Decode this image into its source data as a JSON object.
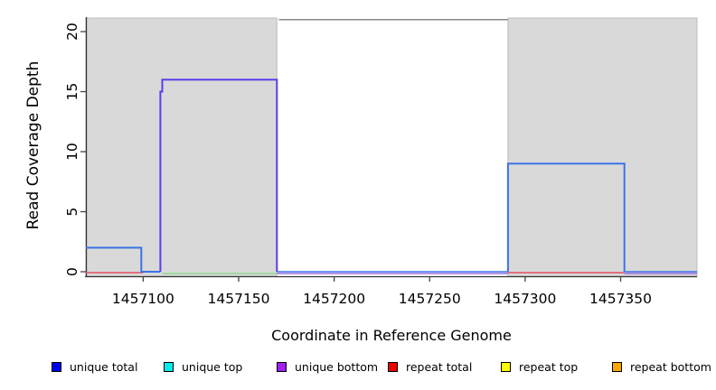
{
  "figure_bg": "#ffffff",
  "chart_data": {
    "type": "line",
    "title": "",
    "xlabel": "Coordinate in Reference Genome",
    "ylabel": "Read Coverage Depth",
    "xlim": [
      1457070,
      1457390
    ],
    "ylim": [
      0,
      21
    ],
    "grid": false,
    "legend_position": "bottom",
    "x_ticks": [
      {
        "value": 1457100,
        "label": "1457100"
      },
      {
        "value": 1457150,
        "label": "1457150"
      },
      {
        "value": 1457200,
        "label": "1457200"
      },
      {
        "value": 1457250,
        "label": "1457250"
      },
      {
        "value": 1457300,
        "label": "1457300"
      },
      {
        "value": 1457350,
        "label": "1457350"
      }
    ],
    "y_ticks": [
      {
        "value": 0,
        "label": "0"
      },
      {
        "value": 5,
        "label": "5"
      },
      {
        "value": 10,
        "label": "10"
      },
      {
        "value": 15,
        "label": "15"
      },
      {
        "value": 20,
        "label": "20"
      }
    ],
    "repeat_regions": [
      {
        "x_start": 1457070,
        "x_end": 1457170
      },
      {
        "x_start": 1457291,
        "x_end": 1457390
      }
    ],
    "max_depth_line": {
      "y": 21,
      "x_start": 1457171,
      "x_end": 1457291,
      "color": "#8A8A8A"
    },
    "colors": {
      "repeat_region_fill": "#D9D9D9",
      "repeat_region_border": "#BDBDBD",
      "axis": "#333333",
      "tick": "#444444",
      "tick_label": "#000000"
    },
    "series": [
      {
        "name": "unique total",
        "color": "#0000EE",
        "steps": [
          [
            1457070,
            2
          ],
          [
            1457099,
            0
          ],
          [
            1457109,
            15
          ],
          [
            1457110,
            16
          ],
          [
            1457170,
            0
          ],
          [
            1457291,
            9
          ],
          [
            1457352,
            0
          ],
          [
            1457390,
            0
          ]
        ]
      },
      {
        "name": "unique top",
        "color": "#00EEEE",
        "steps": [
          [
            1457110,
            0
          ],
          [
            1457170,
            0
          ]
        ]
      },
      {
        "name": "unique bottom",
        "color": "#A020F0",
        "steps": [
          [
            1457070,
            0
          ],
          [
            1457109,
            15
          ],
          [
            1457110,
            16
          ],
          [
            1457170,
            0
          ],
          [
            1457390,
            0
          ]
        ]
      },
      {
        "name": "repeat total",
        "color": "#EE0000",
        "steps": [
          [
            1457070,
            0
          ],
          [
            1457100,
            0
          ],
          [
            1457291,
            0
          ],
          [
            1457352,
            0
          ]
        ]
      },
      {
        "name": "repeat top",
        "color": "#FFFF00",
        "steps": [
          [
            1457070,
            0
          ],
          [
            1457390,
            0
          ]
        ]
      },
      {
        "name": "repeat bottom",
        "color": "#FFA500",
        "steps": [
          [
            1457070,
            0
          ],
          [
            1457390,
            0
          ]
        ]
      }
    ],
    "drawn_segments": [
      {
        "name": "repeat-total-baseline-left",
        "color": "#E25060",
        "width": 1.6,
        "dy": 1,
        "pts": [
          [
            1457070,
            0
          ],
          [
            1457100,
            0
          ]
        ]
      },
      {
        "name": "unique-total-left-step",
        "color": "#3B74E8",
        "width": 2,
        "dy": 0,
        "pts": [
          [
            1457070,
            2
          ],
          [
            1457099,
            2
          ],
          [
            1457099,
            0
          ],
          [
            1457109,
            0
          ]
        ]
      },
      {
        "name": "unique-hump-left",
        "color": "#5C3CE8",
        "width": 2,
        "dy": 0,
        "pts": [
          [
            1457109,
            0
          ],
          [
            1457109,
            15
          ],
          [
            1457110,
            15
          ],
          [
            1457110,
            16
          ],
          [
            1457170,
            16
          ],
          [
            1457170,
            0
          ]
        ]
      },
      {
        "name": "unique-top-baseline",
        "color": "#8CD98C",
        "width": 1.5,
        "dy": 2,
        "pts": [
          [
            1457110,
            0
          ],
          [
            1457170,
            0
          ]
        ]
      },
      {
        "name": "unique-total-baseline-mid",
        "color": "#3B74E8",
        "width": 1.6,
        "dy": 0,
        "pts": [
          [
            1457170,
            0
          ],
          [
            1457291,
            0
          ]
        ]
      },
      {
        "name": "unique-bottom-baseline-mid",
        "color": "#9B70E0",
        "width": 1.6,
        "dy": 2,
        "pts": [
          [
            1457170,
            0
          ],
          [
            1457291,
            0
          ]
        ]
      },
      {
        "name": "max-depth-line",
        "color": "#8A8A8A",
        "width": 1.5,
        "dy": 0,
        "pts": [
          [
            1457171,
            21
          ],
          [
            1457291,
            21
          ]
        ]
      },
      {
        "name": "unique-total-hump-right",
        "color": "#3B74E8",
        "width": 2,
        "dy": 0,
        "pts": [
          [
            1457291,
            0
          ],
          [
            1457291,
            9
          ],
          [
            1457352,
            9
          ],
          [
            1457352,
            0
          ]
        ]
      },
      {
        "name": "repeat-total-baseline-right",
        "color": "#E25060",
        "width": 1.6,
        "dy": 1,
        "pts": [
          [
            1457291,
            0
          ],
          [
            1457352,
            0
          ]
        ]
      },
      {
        "name": "unique-total-tail",
        "color": "#3B74E8",
        "width": 1.6,
        "dy": 0,
        "pts": [
          [
            1457352,
            0
          ],
          [
            1457390,
            0
          ]
        ]
      },
      {
        "name": "unique-bottom-tail",
        "color": "#9B70E0",
        "width": 1.6,
        "dy": 2,
        "pts": [
          [
            1457352,
            0
          ],
          [
            1457390,
            0
          ]
        ]
      }
    ],
    "legend": [
      {
        "label": "unique total",
        "color": "#0000EE"
      },
      {
        "label": "unique top",
        "color": "#00EEEE"
      },
      {
        "label": "unique bottom",
        "color": "#A020F0"
      },
      {
        "label": "repeat total",
        "color": "#EE0000"
      },
      {
        "label": "repeat top",
        "color": "#FFFF00"
      },
      {
        "label": "repeat bottom",
        "color": "#FFA500"
      }
    ]
  }
}
